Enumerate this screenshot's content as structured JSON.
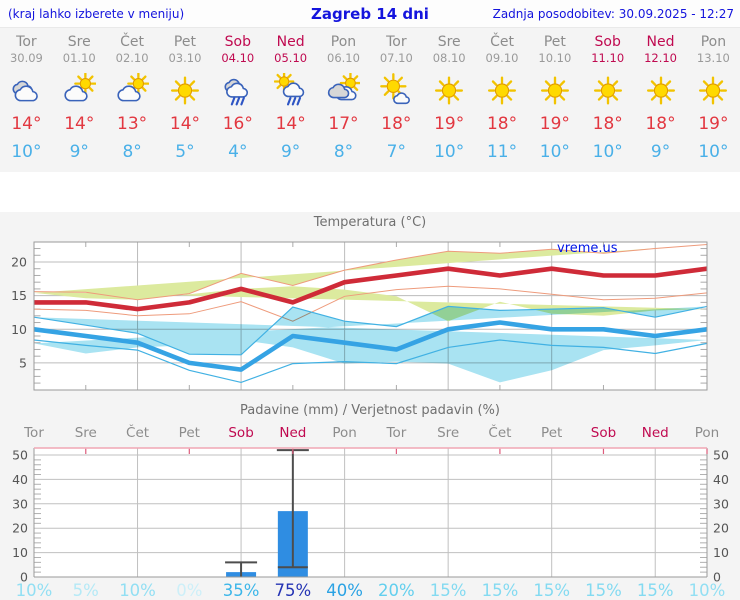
{
  "header": {
    "hint": "(kraj lahko izberete v meniju)",
    "title": "Zagreb 14 dni",
    "last_update": "Zadnja posodobitev: 30.09.2025 - 12:27"
  },
  "days": [
    {
      "name": "Tor",
      "date": "30.09",
      "weekend": false,
      "icon": "cloudy",
      "tmax": "14°",
      "tmin": "10°",
      "prob": "10%",
      "prob_color": "#92dff3"
    },
    {
      "name": "Sre",
      "date": "01.10",
      "weekend": false,
      "icon": "partly",
      "tmax": "14°",
      "tmin": "9°",
      "prob": "5%",
      "prob_color": "#b4e9f6"
    },
    {
      "name": "Čet",
      "date": "02.10",
      "weekend": false,
      "icon": "partly",
      "tmax": "13°",
      "tmin": "8°",
      "prob": "10%",
      "prob_color": "#92dff3"
    },
    {
      "name": "Pet",
      "date": "03.10",
      "weekend": false,
      "icon": "sunny",
      "tmax": "14°",
      "tmin": "5°",
      "prob": "0%",
      "prob_color": "#cdeff8"
    },
    {
      "name": "Sob",
      "date": "04.10",
      "weekend": true,
      "icon": "rain",
      "tmax": "16°",
      "tmin": "4°",
      "prob": "35%",
      "prob_color": "#3cb6e9"
    },
    {
      "name": "Ned",
      "date": "05.10",
      "weekend": true,
      "icon": "sun-rain",
      "tmax": "14°",
      "tmin": "9°",
      "prob": "75%",
      "prob_color": "#2433b4"
    },
    {
      "name": "Pon",
      "date": "06.10",
      "weekend": false,
      "icon": "cloud-sun",
      "tmax": "17°",
      "tmin": "8°",
      "prob": "40%",
      "prob_color": "#2aa2e4"
    },
    {
      "name": "Tor",
      "date": "07.10",
      "weekend": false,
      "icon": "sun-cloud",
      "tmax": "18°",
      "tmin": "7°",
      "prob": "20%",
      "prob_color": "#62cfee"
    },
    {
      "name": "Sre",
      "date": "08.10",
      "weekend": false,
      "icon": "sunny",
      "tmax": "19°",
      "tmin": "10°",
      "prob": "15%",
      "prob_color": "#83daf1"
    },
    {
      "name": "Čet",
      "date": "09.10",
      "weekend": false,
      "icon": "sunny",
      "tmax": "18°",
      "tmin": "11°",
      "prob": "15%",
      "prob_color": "#83daf1"
    },
    {
      "name": "Pet",
      "date": "10.10",
      "weekend": false,
      "icon": "sunny",
      "tmax": "19°",
      "tmin": "10°",
      "prob": "15%",
      "prob_color": "#83daf1"
    },
    {
      "name": "Sob",
      "date": "11.10",
      "weekend": true,
      "icon": "sunny",
      "tmax": "18°",
      "tmin": "10°",
      "prob": "15%",
      "prob_color": "#83daf1"
    },
    {
      "name": "Ned",
      "date": "12.10",
      "weekend": true,
      "icon": "sunny",
      "tmax": "18°",
      "tmin": "9°",
      "prob": "15%",
      "prob_color": "#83daf1"
    },
    {
      "name": "Pon",
      "date": "13.10",
      "weekend": false,
      "icon": "sunny",
      "tmax": "19°",
      "tmin": "10°",
      "prob": "10%",
      "prob_color": "#92dff3"
    }
  ],
  "chart_data": [
    {
      "type": "line",
      "title": "Temperatura (°C)",
      "watermark": "vreme.us",
      "x_days": [
        "Tor",
        "Sre",
        "Čet",
        "Pet",
        "Sob",
        "Ned",
        "Pon",
        "Tor",
        "Sre",
        "Čet",
        "Pet",
        "Sob",
        "Ned",
        "Pon"
      ],
      "ylim": [
        1,
        23
      ],
      "yticks": [
        5,
        10,
        15,
        20
      ],
      "grid": "on",
      "series": [
        {
          "name": "t_max",
          "color": "#cf2b38",
          "values": [
            14,
            14,
            13,
            14,
            16,
            14,
            17,
            18,
            19,
            18,
            19,
            18,
            18,
            19
          ]
        },
        {
          "name": "t_max_band_hi",
          "color": "#dcea9e",
          "values": [
            15.6,
            15.5,
            14.4,
            15.3,
            18.3,
            16.5,
            18.8,
            20.3,
            21.6,
            21.3,
            21.9,
            21.3,
            22.0,
            22.6
          ]
        },
        {
          "name": "t_max_band_lo",
          "color": "#dcea9e",
          "values": [
            13.0,
            12.8,
            12.0,
            12.3,
            14.1,
            11.2,
            14.9,
            15.9,
            16.4,
            16.0,
            15.2,
            14.4,
            14.6,
            15.4
          ]
        },
        {
          "name": "t_min",
          "color": "#35a3e4",
          "values": [
            10,
            9,
            8,
            5,
            4,
            9,
            8,
            7,
            10,
            11,
            10,
            10,
            9,
            10
          ]
        },
        {
          "name": "t_min_band_hi",
          "color": "#a9e3f2",
          "values": [
            11.8,
            10.6,
            9.4,
            6.3,
            6.2,
            13.3,
            11.2,
            10.4,
            13.4,
            12.8,
            13.0,
            13.2,
            11.8,
            13.4
          ]
        },
        {
          "name": "t_min_band_lo",
          "color": "#a9e3f2",
          "values": [
            8.4,
            7.6,
            6.9,
            3.9,
            2.1,
            4.9,
            5.2,
            4.9,
            7.3,
            8.4,
            7.6,
            7.3,
            6.4,
            7.9
          ]
        }
      ]
    },
    {
      "type": "bar",
      "title": "Padavine (mm) / Verjetnost padavin (%)",
      "x_days": [
        "Tor",
        "Sre",
        "Čet",
        "Pet",
        "Sob",
        "Ned",
        "Pon",
        "Tor",
        "Sre",
        "Čet",
        "Pet",
        "Sob",
        "Ned",
        "Pon"
      ],
      "ylim": [
        0,
        52
      ],
      "yticks": [
        0,
        10,
        20,
        30,
        40,
        50
      ],
      "bar_color": "#2f8de2",
      "precip_mm": [
        0,
        0,
        0,
        0,
        2,
        27,
        0,
        0,
        0,
        0,
        0,
        0,
        0,
        0
      ],
      "whiskers": [
        null,
        null,
        null,
        null,
        [
          0,
          6
        ],
        [
          4,
          52
        ],
        null,
        null,
        null,
        null,
        null,
        null,
        null,
        null
      ],
      "probability_pct": [
        10,
        5,
        10,
        0,
        35,
        75,
        40,
        20,
        15,
        15,
        15,
        15,
        15,
        10
      ]
    }
  ],
  "colors": {
    "header_text": "#1414dd",
    "weekday": "#8c8c8c",
    "weekend": "#c00a50",
    "tmax": "#e23740",
    "tmin": "#49b0e8",
    "max_line": "#cf2b38",
    "max_band": "#dcea9e",
    "max_band_edge": "#ee9b7c",
    "min_line": "#35a3e4",
    "min_band": "#a9e3f2",
    "min_band_edge": "#41b1e3",
    "grid": "#bcbcbc",
    "frame": "#9a9a9a",
    "precip_top_frame": "#f0a6b4",
    "precip_top_tick": "#dd5c7c",
    "whisker": "#4d4d4d",
    "strip_bg": "#f4f4f4"
  }
}
